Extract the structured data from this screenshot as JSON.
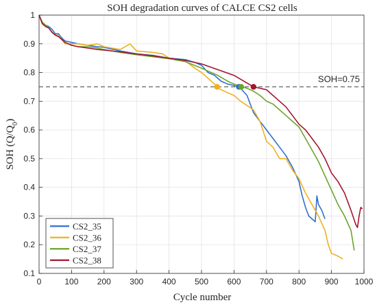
{
  "chart_data": {
    "type": "line",
    "title": "SOH degradation curves of CALCE CS2 cells",
    "xlabel": "Cycle number",
    "ylabel": "SOH (Q/Q",
    "ylabel_sub": "0",
    "ylabel_close": ")",
    "xlim": [
      0,
      1000
    ],
    "ylim": [
      0.1,
      1
    ],
    "xticks": [
      0,
      100,
      200,
      300,
      400,
      500,
      600,
      700,
      800,
      900,
      1000
    ],
    "yticks": [
      0.1,
      0.2,
      0.3,
      0.4,
      0.5,
      0.6,
      0.7,
      0.8,
      0.9,
      1
    ],
    "grid": true,
    "legend_position": "bottom-left",
    "reference_line": {
      "y": 0.75,
      "label": "SOH=0.75",
      "color": "#555555"
    },
    "series": [
      {
        "name": "CS2_35",
        "color": "#2E6FD0",
        "x": [
          0,
          10,
          20,
          30,
          40,
          50,
          60,
          70,
          80,
          100,
          120,
          150,
          180,
          200,
          250,
          300,
          350,
          400,
          450,
          480,
          500,
          520,
          540,
          550,
          560,
          580,
          600,
          620,
          640,
          660,
          680,
          700,
          720,
          740,
          760,
          780,
          800,
          810,
          820,
          830,
          840,
          850,
          855,
          860,
          870,
          880
        ],
        "y": [
          1.0,
          0.975,
          0.965,
          0.96,
          0.95,
          0.935,
          0.935,
          0.92,
          0.91,
          0.905,
          0.9,
          0.895,
          0.89,
          0.888,
          0.875,
          0.865,
          0.86,
          0.85,
          0.845,
          0.835,
          0.825,
          0.8,
          0.79,
          0.78,
          0.77,
          0.76,
          0.755,
          0.745,
          0.72,
          0.66,
          0.63,
          0.6,
          0.57,
          0.54,
          0.51,
          0.47,
          0.42,
          0.37,
          0.33,
          0.3,
          0.29,
          0.28,
          0.37,
          0.34,
          0.32,
          0.29
        ]
      },
      {
        "name": "CS2_36",
        "color": "#EDB120",
        "x": [
          0,
          10,
          20,
          30,
          40,
          50,
          60,
          70,
          80,
          100,
          120,
          150,
          180,
          200,
          250,
          280,
          300,
          350,
          380,
          400,
          450,
          480,
          500,
          520,
          540,
          548,
          560,
          580,
          600,
          620,
          640,
          660,
          680,
          700,
          720,
          740,
          760,
          780,
          800,
          820,
          840,
          860,
          880,
          890,
          900,
          920,
          935
        ],
        "y": [
          1.0,
          0.97,
          0.96,
          0.955,
          0.94,
          0.93,
          0.93,
          0.915,
          0.9,
          0.9,
          0.9,
          0.895,
          0.9,
          0.89,
          0.88,
          0.9,
          0.875,
          0.87,
          0.865,
          0.85,
          0.84,
          0.815,
          0.8,
          0.78,
          0.76,
          0.75,
          0.74,
          0.73,
          0.72,
          0.7,
          0.685,
          0.67,
          0.63,
          0.56,
          0.54,
          0.5,
          0.5,
          0.46,
          0.43,
          0.38,
          0.34,
          0.3,
          0.25,
          0.2,
          0.17,
          0.16,
          0.15
        ]
      },
      {
        "name": "CS2_37",
        "color": "#6AA42A",
        "x": [
          0,
          10,
          20,
          30,
          40,
          50,
          60,
          70,
          80,
          100,
          120,
          150,
          180,
          200,
          250,
          300,
          350,
          400,
          450,
          500,
          550,
          580,
          600,
          622,
          640,
          660,
          680,
          700,
          720,
          740,
          760,
          780,
          800,
          820,
          840,
          860,
          880,
          900,
          920,
          940,
          960,
          970
        ],
        "y": [
          1.0,
          0.975,
          0.965,
          0.955,
          0.94,
          0.93,
          0.925,
          0.915,
          0.905,
          0.895,
          0.89,
          0.89,
          0.885,
          0.88,
          0.87,
          0.862,
          0.855,
          0.848,
          0.838,
          0.815,
          0.79,
          0.77,
          0.76,
          0.75,
          0.745,
          0.735,
          0.72,
          0.7,
          0.69,
          0.67,
          0.65,
          0.63,
          0.61,
          0.57,
          0.53,
          0.49,
          0.44,
          0.39,
          0.34,
          0.3,
          0.25,
          0.18
        ]
      },
      {
        "name": "CS2_38",
        "color": "#A2142F",
        "x": [
          0,
          10,
          20,
          30,
          40,
          50,
          60,
          70,
          80,
          100,
          120,
          150,
          180,
          200,
          250,
          300,
          350,
          400,
          450,
          500,
          550,
          600,
          630,
          660,
          680,
          700,
          720,
          740,
          760,
          780,
          800,
          820,
          840,
          860,
          880,
          900,
          920,
          940,
          960,
          975,
          980,
          985,
          990,
          995
        ],
        "y": [
          1.0,
          0.97,
          0.96,
          0.955,
          0.94,
          0.93,
          0.925,
          0.915,
          0.905,
          0.895,
          0.89,
          0.885,
          0.88,
          0.878,
          0.872,
          0.865,
          0.858,
          0.85,
          0.842,
          0.83,
          0.81,
          0.79,
          0.77,
          0.75,
          0.745,
          0.74,
          0.72,
          0.7,
          0.68,
          0.65,
          0.62,
          0.6,
          0.57,
          0.54,
          0.5,
          0.45,
          0.42,
          0.38,
          0.32,
          0.27,
          0.26,
          0.3,
          0.33,
          0.325
        ]
      }
    ],
    "markers": [
      {
        "series": "CS2_35",
        "x": 615,
        "y": 0.75
      },
      {
        "series": "CS2_36",
        "x": 548,
        "y": 0.75
      },
      {
        "series": "CS2_37",
        "x": 622,
        "y": 0.75
      },
      {
        "series": "CS2_38",
        "x": 660,
        "y": 0.75
      }
    ]
  }
}
